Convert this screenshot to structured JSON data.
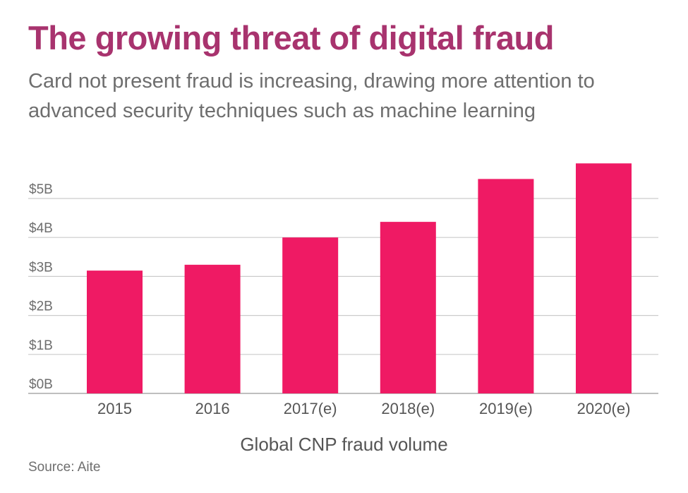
{
  "header": {
    "title": "The growing threat of digital fraud",
    "subtitle": "Card not present fraud is increasing, drawing more attention to advanced security techniques such as machine learning"
  },
  "footer": {
    "source": "Source: Aite"
  },
  "colors": {
    "title": "#a8336e",
    "bar": "#ef1a64",
    "text": "#6e6e6e",
    "grid": "#cccccc"
  },
  "chart_data": {
    "type": "bar",
    "title": "The growing threat of digital fraud",
    "xlabel": "Global CNP fraud volume",
    "ylabel": "",
    "categories": [
      "2015",
      "2016",
      "2017(e)",
      "2018(e)",
      "2019(e)",
      "2020(e)"
    ],
    "values": [
      3.15,
      3.3,
      4.0,
      4.4,
      5.5,
      5.9
    ],
    "unit": "$ billions",
    "yticks": [
      0,
      1,
      2,
      3,
      4,
      5
    ],
    "ytick_labels": [
      "$0B",
      "$1B",
      "$2B",
      "$3B",
      "$4B",
      "$5B"
    ],
    "ylim": [
      0,
      6
    ],
    "grid": true,
    "legend": "none"
  }
}
